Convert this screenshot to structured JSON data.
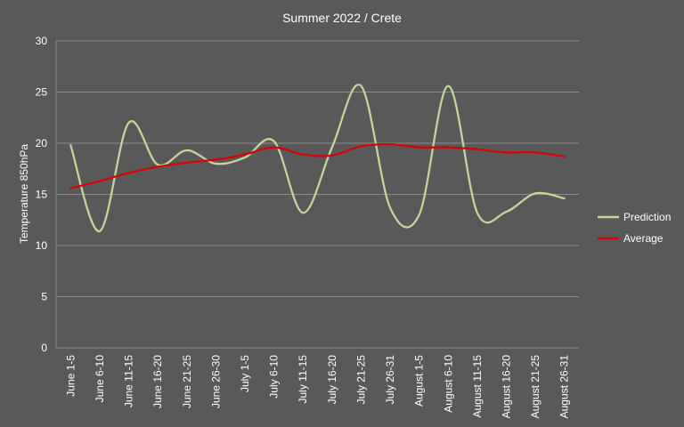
{
  "chart_data": {
    "type": "line",
    "title": "Summer 2022 / Crete",
    "xlabel": "",
    "ylabel": "Temperature 850hPa",
    "ylim": [
      0,
      30
    ],
    "yticks": [
      0,
      5,
      10,
      15,
      20,
      25,
      30
    ],
    "grid": true,
    "legend_position": "right",
    "smooth": true,
    "categories": [
      "June 1-5",
      "June 6-10",
      "June 11-15",
      "June 16-20",
      "June 21-25",
      "June 26-30",
      "July 1-5",
      "July 6-10",
      "July 11-15",
      "July 16-20",
      "July 21-25",
      "July 26-31",
      "August 1-5",
      "August 6-10",
      "August 11-15",
      "August 16-20",
      "August 21-25",
      "August 26-31"
    ],
    "series": [
      {
        "name": "Prediction",
        "color": "#c4d79b",
        "values": [
          19.8,
          11.4,
          22.0,
          17.9,
          19.3,
          18.0,
          18.6,
          20.2,
          13.2,
          19.6,
          25.6,
          13.7,
          13.0,
          25.6,
          13.2,
          13.3,
          15.1,
          14.6
        ]
      },
      {
        "name": "Average",
        "color": "#d90000",
        "values": [
          15.6,
          16.3,
          17.1,
          17.7,
          18.1,
          18.4,
          18.9,
          19.6,
          18.9,
          18.8,
          19.7,
          19.9,
          19.6,
          19.6,
          19.4,
          19.1,
          19.1,
          18.7
        ]
      }
    ]
  }
}
